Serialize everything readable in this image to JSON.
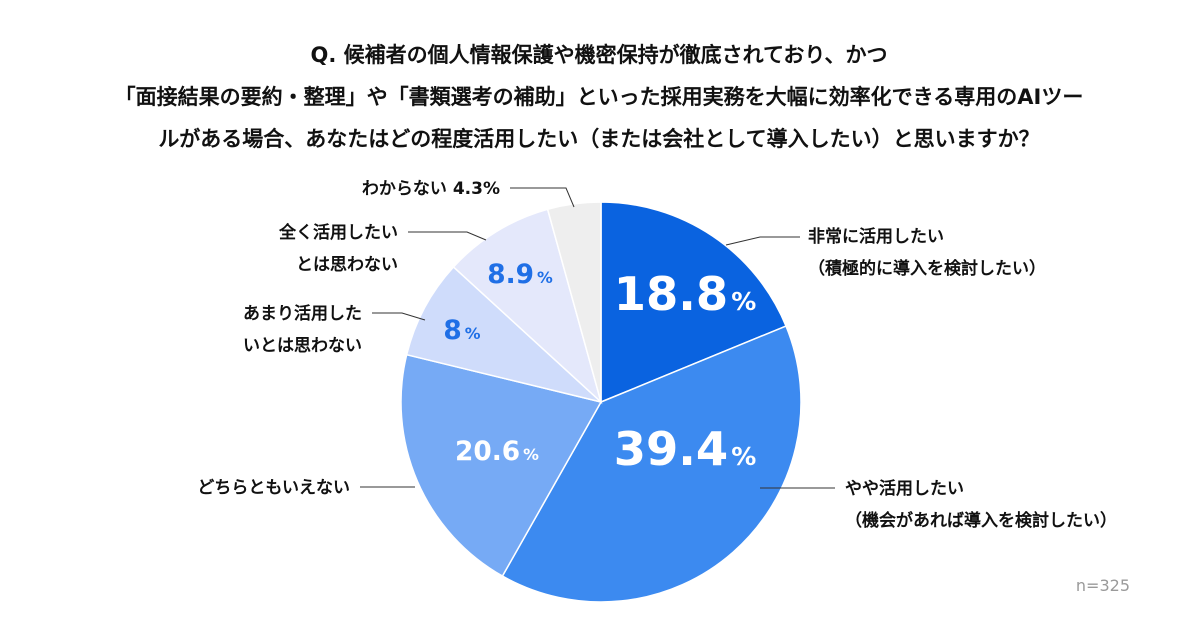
{
  "question": {
    "lines": [
      "Q. 候補者の個人情報保護や機密保持が徹底されており、かつ",
      "「面接結果の要約・整理」や「書類選考の補助」といった採用実務を大幅に効率化できる専用のAIツー",
      "ルがある場合、あなたはどの程度活用したい（または会社として導入したい）と思いますか？"
    ]
  },
  "sample_size": "n=325",
  "chart_data": {
    "type": "pie",
    "start": "top",
    "direction": "clockwise",
    "unit": "%",
    "slices": [
      {
        "label_lines": [
          "非常に活用したい",
          "（積極的に導入を検討したい）"
        ],
        "value": 18.8,
        "value_text": "18.8",
        "color": "#0a63e0",
        "value_color": "#ffffff"
      },
      {
        "label_lines": [
          "やや活用したい",
          "（機会があれば導入を検討したい）"
        ],
        "value": 39.4,
        "value_text": "39.4",
        "color": "#3c8af0",
        "value_color": "#ffffff"
      },
      {
        "label_lines": [
          "どちらともいえない"
        ],
        "value": 20.6,
        "value_text": "20.6",
        "color": "#76aaf5",
        "value_color": "#ffffff"
      },
      {
        "label_lines": [
          "あまり活用した",
          "いとは思わない"
        ],
        "value": 8,
        "value_text": "8",
        "color": "#cfdcfb",
        "value_color": "#1f6fe6"
      },
      {
        "label_lines": [
          "全く活用したい",
          "とは思わない"
        ],
        "value": 8.9,
        "value_text": "8.9",
        "color": "#e4e8fb",
        "value_color": "#1f6fe6"
      },
      {
        "label_lines": [
          "わからない 4.3%"
        ],
        "value": 4.3,
        "value_text": "",
        "color": "#eeeeee",
        "value_color": "#1f6fe6"
      }
    ]
  }
}
